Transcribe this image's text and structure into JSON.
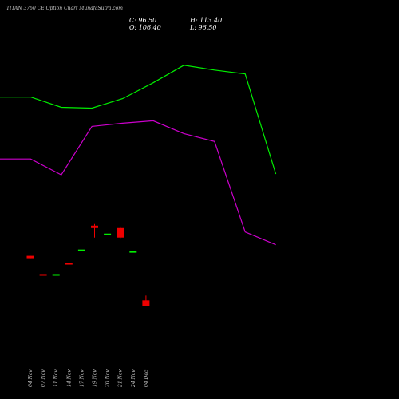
{
  "header": {
    "title": "TITAN 3760 CE Option Chart MunafaSutra.com",
    "close": "C: 96.50",
    "open": "O: 106.40",
    "high": "H: 113.40",
    "low": "L: 96.50"
  },
  "chart_data": {
    "type": "candlestick",
    "categories": [
      "04 Nov",
      "07 Nov",
      "11 Nov",
      "14 Nov",
      "17 Nov",
      "19 Nov",
      "20 Nov",
      "21 Nov",
      "24 Nov",
      "04 Dec"
    ],
    "candles": [
      {
        "open": 98.0,
        "high": 98.0,
        "low": 95.0,
        "close": 95.0
      },
      {
        "open": 75.0,
        "high": 75.0,
        "low": 73.5,
        "close": 74.0
      },
      {
        "open": 75.0,
        "high": 75.0,
        "low": 75.0,
        "close": 75.0
      },
      {
        "open": 89.0,
        "high": 89.0,
        "low": 88.0,
        "close": 88.0
      },
      {
        "open": 106.0,
        "high": 106.0,
        "low": 106.0,
        "close": 106.0
      },
      {
        "open": 136.0,
        "high": 138.0,
        "low": 121.0,
        "close": 133.0
      },
      {
        "open": 126.0,
        "high": 126.0,
        "low": 126.0,
        "close": 126.0
      },
      {
        "open": 133.0,
        "high": 135.0,
        "low": 120.0,
        "close": 121.0
      },
      {
        "open": 104.0,
        "high": 104.0,
        "low": 104.0,
        "close": 104.0
      },
      {
        "open": 42.0,
        "high": 48.0,
        "low": 35.0,
        "close": 35.0
      }
    ],
    "upper_line": [
      298,
      298,
      285,
      284,
      296,
      316,
      338,
      332,
      327,
      201
    ],
    "lower_line": [
      220,
      220,
      200,
      261,
      265,
      268,
      252,
      242,
      128,
      112
    ],
    "upper_color": "#00ee00",
    "lower_color": "#cc00cc",
    "up_color": "#00ee00",
    "down_color": "#ee0000",
    "ylim": [
      -22,
      380
    ]
  }
}
